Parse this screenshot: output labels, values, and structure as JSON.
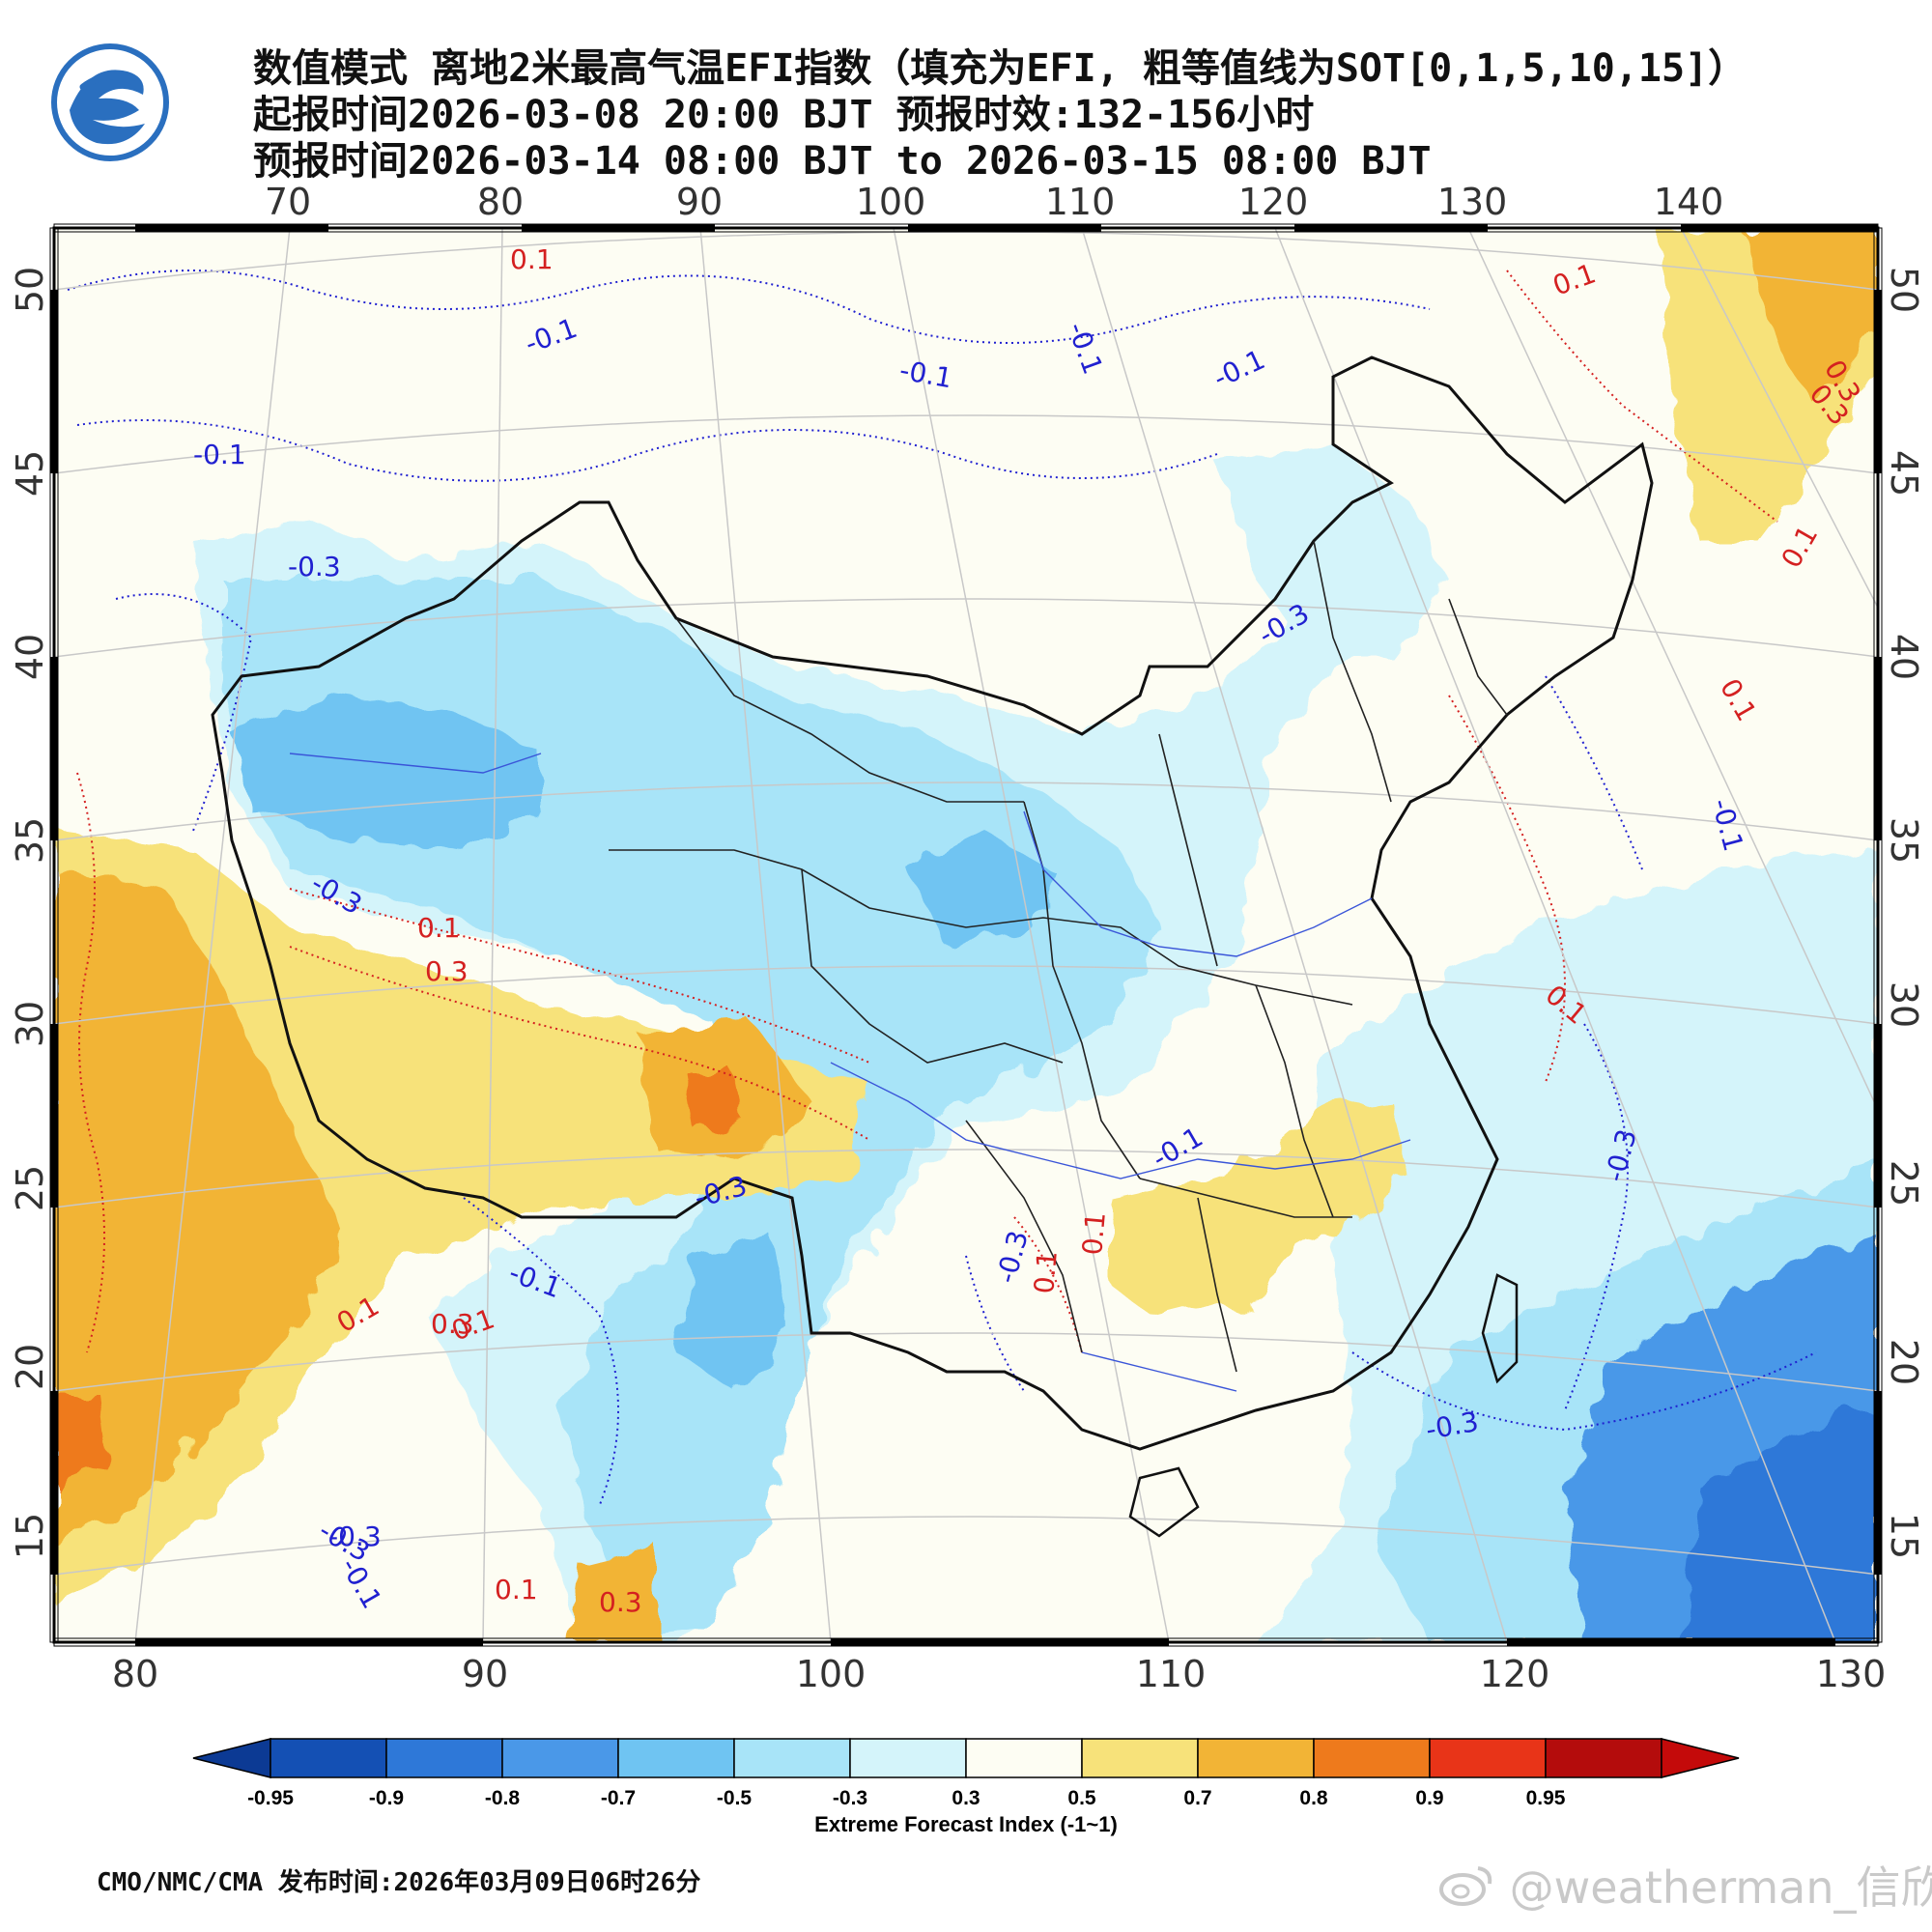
{
  "header": {
    "title_line1": "数值模式 离地2米最高气温EFI指数（填充为EFI, 粗等值线为SOT[0,1,5,10,15]）",
    "title_line2": "起报时间2026-03-08 20:00 BJT 预报时效:132-156小时",
    "title_line3": "预报时间2026-03-14 08:00 BJT to 2026-03-15 08:00 BJT",
    "logo_icon": "cma-logo-icon"
  },
  "map": {
    "top_lon_labels": [
      "70",
      "80",
      "90",
      "100",
      "110",
      "120",
      "130",
      "140"
    ],
    "bottom_lon_labels": [
      "80",
      "90",
      "100",
      "110",
      "120",
      "130"
    ],
    "left_lat_labels": [
      "50",
      "45",
      "40",
      "35",
      "30",
      "25",
      "20",
      "15"
    ],
    "right_lat_labels": [
      "50",
      "45",
      "40",
      "35",
      "30",
      "25",
      "20",
      "15"
    ],
    "contour_labels": [
      {
        "text": "0.1",
        "color": "#d42020"
      },
      {
        "text": "-0.1",
        "color": "#2020d0"
      },
      {
        "text": "-0.1",
        "color": "#2020d0"
      },
      {
        "text": "-0.1",
        "color": "#2020d0"
      },
      {
        "text": "-0.1",
        "color": "#2020d0"
      },
      {
        "text": "-0.1",
        "color": "#2020d0"
      },
      {
        "text": "0.1",
        "color": "#d42020"
      },
      {
        "text": "0.3",
        "color": "#d42020"
      },
      {
        "text": "-0.3",
        "color": "#2020d0"
      },
      {
        "text": "-0.3",
        "color": "#2020d0"
      },
      {
        "text": "0.1",
        "color": "#d42020"
      },
      {
        "text": "-0.1",
        "color": "#2020d0"
      },
      {
        "text": "-0.3",
        "color": "#2020d0"
      },
      {
        "text": "0.1",
        "color": "#d42020"
      },
      {
        "text": "0.3",
        "color": "#d42020"
      },
      {
        "text": "-0.3",
        "color": "#2020d0"
      },
      {
        "text": "-0.1",
        "color": "#2020d0"
      },
      {
        "text": "0.3",
        "color": "#d42020"
      },
      {
        "text": "0.1",
        "color": "#d42020"
      },
      {
        "text": "-0.3",
        "color": "#2020d0"
      },
      {
        "text": "0.1",
        "color": "#d42020"
      },
      {
        "text": "0.1",
        "color": "#d42020"
      },
      {
        "text": "-0.3",
        "color": "#2020d0"
      },
      {
        "text": "-0.3",
        "color": "#2020d0"
      },
      {
        "text": "-0.1",
        "color": "#2020d0"
      },
      {
        "text": "0.1",
        "color": "#d42020"
      },
      {
        "text": "0.3",
        "color": "#d42020"
      },
      {
        "text": "0.1",
        "color": "#d42020"
      },
      {
        "text": "-0.1",
        "color": "#2020d0"
      },
      {
        "text": "0.1",
        "color": "#d42020"
      },
      {
        "text": "-0.3",
        "color": "#2020d0"
      },
      {
        "text": "-0.3",
        "color": "#2020d0"
      },
      {
        "text": "0.1",
        "color": "#d42020"
      },
      {
        "text": "0.3",
        "color": "#d42020"
      }
    ]
  },
  "colorbar": {
    "colors": [
      "#1450b4",
      "#2e78d8",
      "#4a98e8",
      "#6fc4f2",
      "#a8e4f8",
      "#d4f4fa",
      "#fdfdf3",
      "#f7e27a",
      "#f2b436",
      "#ee7a1c",
      "#e83418",
      "#b40c0c"
    ],
    "left_arrow_color": "#0c3a94",
    "right_arrow_color": "#c40a0a",
    "tick_labels": [
      "-0.95",
      "-0.9",
      "-0.8",
      "-0.7",
      "-0.5",
      "-0.3",
      "0.3",
      "0.5",
      "0.7",
      "0.8",
      "0.9",
      "0.95"
    ],
    "title": "Extreme Forecast Index (-1~1)"
  },
  "footer": {
    "source": "CMO/NMC/CMA 发布时间:2026年03月09日06时26分",
    "watermark": "@weatherman_信欣",
    "weibo_icon": "weibo-icon"
  }
}
